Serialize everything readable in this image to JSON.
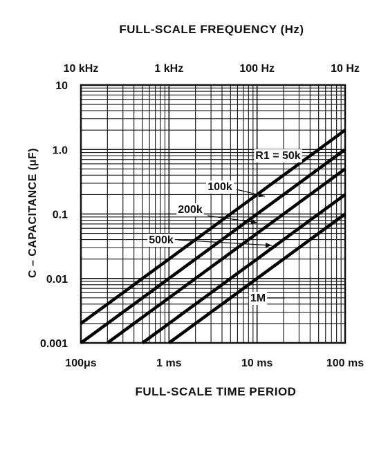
{
  "chart_data": {
    "type": "line",
    "title": "FULL-SCALE FREQUENCY (Hz)",
    "xlabel": "FULL-SCALE TIME PERIOD",
    "ylabel": "C – CAPACITANCE (μF)",
    "x_scale": "log",
    "y_scale": "log",
    "grid": true,
    "xlim": [
      0.0001,
      0.1
    ],
    "ylim": [
      0.001,
      10
    ],
    "x_ticks": [
      {
        "value": 0.0001,
        "label": "100μs"
      },
      {
        "value": 0.001,
        "label": "1 ms"
      },
      {
        "value": 0.01,
        "label": "10 ms"
      },
      {
        "value": 0.1,
        "label": "100 ms"
      }
    ],
    "y_ticks": [
      {
        "value": 0.001,
        "label": "0.001"
      },
      {
        "value": 0.01,
        "label": "0.01"
      },
      {
        "value": 0.1,
        "label": "0.1"
      },
      {
        "value": 1,
        "label": "1.0"
      },
      {
        "value": 10,
        "label": "10"
      }
    ],
    "top_ticks": [
      {
        "value": 0.0001,
        "label": "10 kHz"
      },
      {
        "value": 0.001,
        "label": "1 kHz"
      },
      {
        "value": 0.01,
        "label": "100 Hz"
      },
      {
        "value": 0.1,
        "label": "10 Hz"
      }
    ],
    "series": [
      {
        "name": "R1 = 50k",
        "x": [
          0.0001,
          0.1
        ],
        "y": [
          0.002,
          2
        ]
      },
      {
        "name": "100k",
        "x": [
          0.0001,
          0.1
        ],
        "y": [
          0.001,
          1
        ]
      },
      {
        "name": "200k",
        "x": [
          0.0002,
          0.1
        ],
        "y": [
          0.001,
          0.5
        ]
      },
      {
        "name": "500k",
        "x": [
          0.0005,
          0.1
        ],
        "y": [
          0.001,
          0.2
        ]
      },
      {
        "name": "1M",
        "x": [
          0.001,
          0.1
        ],
        "y": [
          0.001,
          0.1
        ]
      }
    ]
  }
}
